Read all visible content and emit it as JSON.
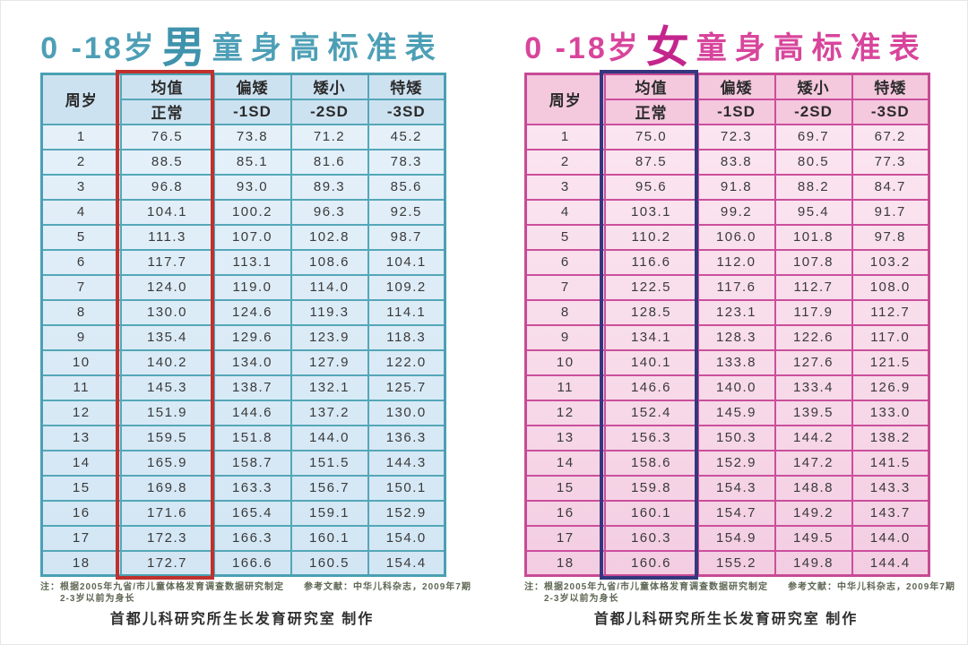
{
  "boys": {
    "title_prefix": "0 -18岁",
    "title_gender": "男",
    "title_suffix": "童身高标准表",
    "header": {
      "age": "周岁",
      "mean_top": "均值",
      "mean_bottom": "正常",
      "sd1_top": "偏矮",
      "sd1_bottom": "-1SD",
      "sd2_top": "矮小",
      "sd2_bottom": "-2SD",
      "sd3_top": "特矮",
      "sd3_bottom": "-3SD"
    },
    "rows": [
      [
        "1",
        "76.5",
        "73.8",
        "71.2",
        "45.2"
      ],
      [
        "2",
        "88.5",
        "85.1",
        "81.6",
        "78.3"
      ],
      [
        "3",
        "96.8",
        "93.0",
        "89.3",
        "85.6"
      ],
      [
        "4",
        "104.1",
        "100.2",
        "96.3",
        "92.5"
      ],
      [
        "5",
        "111.3",
        "107.0",
        "102.8",
        "98.7"
      ],
      [
        "6",
        "117.7",
        "113.1",
        "108.6",
        "104.1"
      ],
      [
        "7",
        "124.0",
        "119.0",
        "114.0",
        "109.2"
      ],
      [
        "8",
        "130.0",
        "124.6",
        "119.3",
        "114.1"
      ],
      [
        "9",
        "135.4",
        "129.6",
        "123.9",
        "118.3"
      ],
      [
        "10",
        "140.2",
        "134.0",
        "127.9",
        "122.0"
      ],
      [
        "11",
        "145.3",
        "138.7",
        "132.1",
        "125.7"
      ],
      [
        "12",
        "151.9",
        "144.6",
        "137.2",
        "130.0"
      ],
      [
        "13",
        "159.5",
        "151.8",
        "144.0",
        "136.3"
      ],
      [
        "14",
        "165.9",
        "158.7",
        "151.5",
        "144.3"
      ],
      [
        "15",
        "169.8",
        "163.3",
        "156.7",
        "150.1"
      ],
      [
        "16",
        "171.6",
        "165.4",
        "159.1",
        "152.9"
      ],
      [
        "17",
        "172.3",
        "166.3",
        "160.1",
        "154.0"
      ],
      [
        "18",
        "172.7",
        "166.6",
        "160.5",
        "154.4"
      ]
    ],
    "note1": "注：根据2005年九省/市儿童体格发育调查数据研究制定　　参考文献：中华儿科杂志，2009年7期",
    "note2": "2-3岁以前为身长",
    "credit": "首都儿科研究所生长发育研究室  制作",
    "colors": {
      "accent": "#54a7b8",
      "title": "#4d9fb6",
      "cell": "#d9eaf6",
      "header_cell": "#cde2f1",
      "highlight_box": "#c0312d"
    }
  },
  "girls": {
    "title_prefix": "0 -18岁",
    "title_gender": "女",
    "title_suffix": "童身高标准表",
    "header": {
      "age": "周岁",
      "mean_top": "均值",
      "mean_bottom": "正常",
      "sd1_top": "偏矮",
      "sd1_bottom": "-1SD",
      "sd2_top": "矮小",
      "sd2_bottom": "-2SD",
      "sd3_top": "特矮",
      "sd3_bottom": "-3SD"
    },
    "rows": [
      [
        "1",
        "75.0",
        "72.3",
        "69.7",
        "67.2"
      ],
      [
        "2",
        "87.5",
        "83.8",
        "80.5",
        "77.3"
      ],
      [
        "3",
        "95.6",
        "91.8",
        "88.2",
        "84.7"
      ],
      [
        "4",
        "103.1",
        "99.2",
        "95.4",
        "91.7"
      ],
      [
        "5",
        "110.2",
        "106.0",
        "101.8",
        "97.8"
      ],
      [
        "6",
        "116.6",
        "112.0",
        "107.8",
        "103.2"
      ],
      [
        "7",
        "122.5",
        "117.6",
        "112.7",
        "108.0"
      ],
      [
        "8",
        "128.5",
        "123.1",
        "117.9",
        "112.7"
      ],
      [
        "9",
        "134.1",
        "128.3",
        "122.6",
        "117.0"
      ],
      [
        "10",
        "140.1",
        "133.8",
        "127.6",
        "121.5"
      ],
      [
        "11",
        "146.6",
        "140.0",
        "133.4",
        "126.9"
      ],
      [
        "12",
        "152.4",
        "145.9",
        "139.5",
        "133.0"
      ],
      [
        "13",
        "156.3",
        "150.3",
        "144.2",
        "138.2"
      ],
      [
        "14",
        "158.6",
        "152.9",
        "147.2",
        "141.5"
      ],
      [
        "15",
        "159.8",
        "154.3",
        "148.8",
        "143.3"
      ],
      [
        "16",
        "160.1",
        "154.7",
        "149.2",
        "143.7"
      ],
      [
        "17",
        "160.3",
        "154.9",
        "149.5",
        "144.0"
      ],
      [
        "18",
        "160.6",
        "155.2",
        "149.8",
        "144.4"
      ]
    ],
    "note1": "注：根据2005年九省/市儿童体格发育调查数据研究制定　　参考文献：中华儿科杂志，2009年7期",
    "note2": "2-3岁以前为身长",
    "credit": "首都儿科研究所生长发育研究室  制作",
    "colors": {
      "accent": "#cb4f9c",
      "title": "#d8459c",
      "cell": "#f8dcea",
      "header_cell": "#f4c8dd",
      "highlight_box": "#34377e"
    }
  }
}
